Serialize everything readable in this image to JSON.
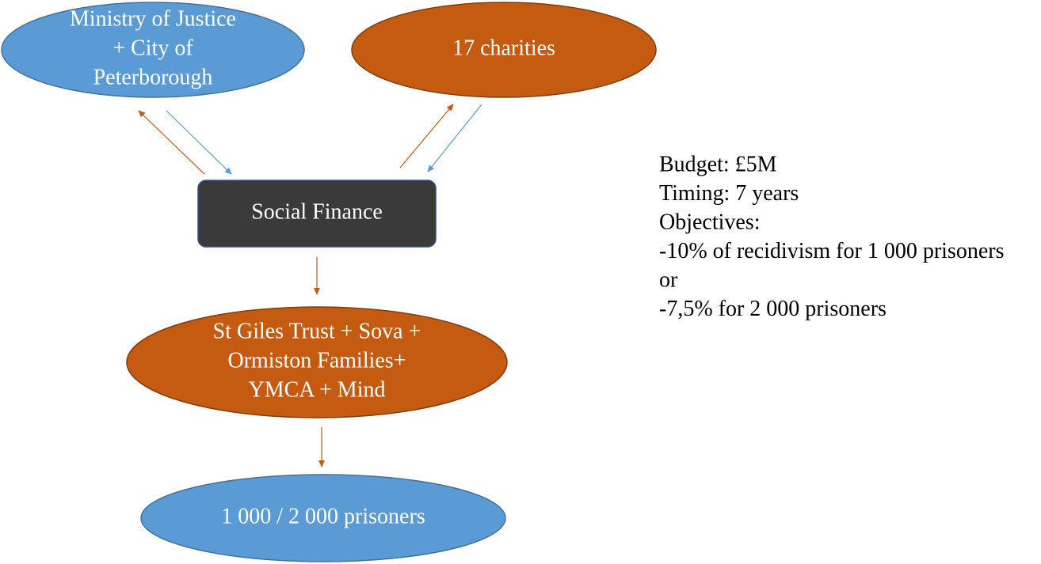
{
  "nodes": [
    {
      "lines": [
        "Ministry of Justice",
        "+ City of",
        "Peterborough"
      ]
    },
    {
      "lines": [
        "17 charities"
      ]
    },
    {
      "lines": [
        "Social Finance"
      ]
    },
    {
      "lines": [
        "St Giles Trust + Sova +",
        "Ormiston Families+",
        "YMCA + Mind"
      ]
    },
    {
      "lines": [
        "1 000 / 2 000 prisoners"
      ]
    }
  ],
  "details": [
    "Budget: £5M",
    "Timing: 7 years",
    "Objectives:",
    "-10% of recidivism for 1 000 prisoners",
    "or",
    "-7,5% for 2 000 prisoners"
  ]
}
